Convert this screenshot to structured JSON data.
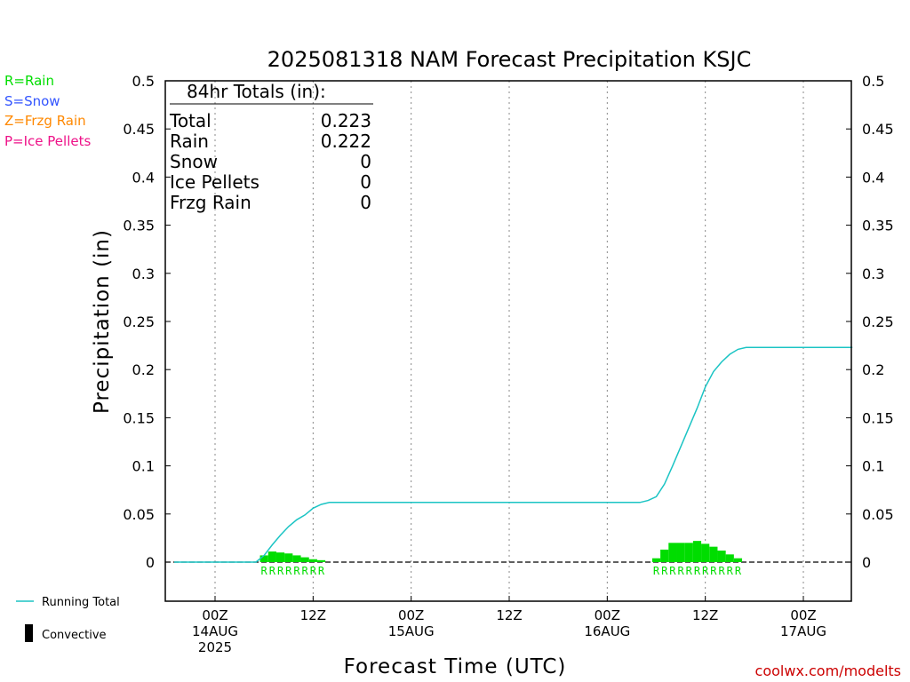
{
  "colors": {
    "rain": "#00dd00",
    "snow": "#3355ff",
    "frzg_rain": "#ff8800",
    "ice_pellets": "#ee1188",
    "running_total": "#1bc4c4",
    "credit": "#cc0000",
    "grid": "#888888"
  },
  "key": {
    "rain": "R=Rain",
    "snow": "S=Snow",
    "frzg_rain": "Z=Frzg Rain",
    "ice_pellets": "P=Ice Pellets"
  },
  "totals": {
    "header": "84hr Totals (in):",
    "rows": [
      {
        "label": "Total",
        "value": "0.223"
      },
      {
        "label": "Rain",
        "value": "0.222"
      },
      {
        "label": "Snow",
        "value": "0"
      },
      {
        "label": "Ice Pellets",
        "value": "0"
      },
      {
        "label": "Frzg Rain",
        "value": "0"
      }
    ]
  },
  "legend": {
    "running_total": "Running Total",
    "convective": "Convective"
  },
  "credit": "coolwx.com/modelts",
  "chart_data": {
    "type": "bar",
    "title": "2025081318 NAM Forecast Precipitation KSJC",
    "ylabel": "Precipitation (in)",
    "xlabel": "Forecast Time (UTC)",
    "ylim": [
      -0.04,
      0.5
    ],
    "yticks": [
      0,
      0.05,
      0.1,
      0.15,
      0.2,
      0.25,
      0.3,
      0.35,
      0.4,
      0.45,
      0.5
    ],
    "ytick_labels": [
      "0",
      "0.05",
      "0.1",
      "0.15",
      "0.2",
      "0.25",
      "0.3",
      "0.35",
      "0.4",
      "0.45",
      "0.5"
    ],
    "x_unit": "forecast hour",
    "xlim": [
      0,
      84
    ],
    "grid": "vertical dotted at each 12-hour tick",
    "xticks": [
      {
        "hour": 6,
        "lines": [
          "00Z",
          "14AUG",
          "2025"
        ]
      },
      {
        "hour": 18,
        "lines": [
          "12Z"
        ]
      },
      {
        "hour": 30,
        "lines": [
          "00Z",
          "15AUG"
        ]
      },
      {
        "hour": 42,
        "lines": [
          "12Z"
        ]
      },
      {
        "hour": 54,
        "lines": [
          "00Z",
          "16AUG"
        ]
      },
      {
        "hour": 66,
        "lines": [
          "12Z"
        ]
      },
      {
        "hour": 78,
        "lines": [
          "00Z",
          "17AUG"
        ]
      }
    ],
    "series": [
      {
        "name": "Rain",
        "type": "bar",
        "hours": [
          12,
          13,
          14,
          15,
          16,
          17,
          18,
          19,
          60,
          61,
          62,
          63,
          64,
          65,
          66,
          67,
          68,
          69,
          70
        ],
        "values": [
          0.007,
          0.011,
          0.01,
          0.009,
          0.007,
          0.005,
          0.003,
          0.002,
          0.004,
          0.013,
          0.02,
          0.02,
          0.02,
          0.022,
          0.019,
          0.016,
          0.012,
          0.008,
          0.004
        ],
        "type_codes": [
          "R",
          "R",
          "R",
          "R",
          "R",
          "R",
          "R",
          "R",
          "R",
          "R",
          "R",
          "R",
          "R",
          "R",
          "R",
          "R",
          "R",
          "R",
          "R"
        ]
      },
      {
        "name": "Running Total",
        "type": "line",
        "hours": [
          1,
          11,
          12,
          13,
          14,
          15,
          16,
          17,
          18,
          19,
          20,
          58,
          59,
          60,
          61,
          62,
          63,
          64,
          65,
          66,
          67,
          68,
          69,
          70,
          71,
          72,
          84
        ],
        "values": [
          0,
          0,
          0.007,
          0.018,
          0.028,
          0.037,
          0.044,
          0.049,
          0.056,
          0.06,
          0.062,
          0.062,
          0.064,
          0.068,
          0.081,
          0.1,
          0.12,
          0.14,
          0.16,
          0.182,
          0.198,
          0.208,
          0.216,
          0.221,
          0.223,
          0.223,
          0.223
        ]
      }
    ]
  }
}
